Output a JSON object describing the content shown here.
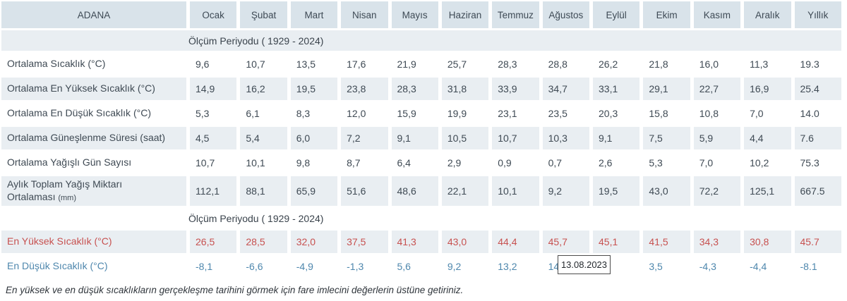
{
  "colors": {
    "header_bg": "#d9e3ea",
    "stripe_bg": "#e9eef2",
    "text": "#3f4a54",
    "max_color": "#c75150",
    "min_color": "#4e87ad"
  },
  "table": {
    "station": "ADANA",
    "months": [
      "Ocak",
      "Şubat",
      "Mart",
      "Nisan",
      "Mayıs",
      "Haziran",
      "Temmuz",
      "Ağustos",
      "Eylül",
      "Ekim",
      "Kasım",
      "Aralık",
      "Yıllık"
    ],
    "sections": [
      "Ölçüm Periyodu ( 1929 - 2024)",
      "Ölçüm Periyodu ( 1929 - 2024)"
    ],
    "rows": [
      {
        "label": "Ortalama Sıcaklık (°C)",
        "values": [
          "9,6",
          "10,7",
          "13,5",
          "17,6",
          "21,9",
          "25,7",
          "28,3",
          "28,8",
          "26,2",
          "21,8",
          "16,0",
          "11,3",
          "19.3"
        ]
      },
      {
        "label": "Ortalama En Yüksek Sıcaklık (°C)",
        "values": [
          "14,9",
          "16,2",
          "19,5",
          "23,8",
          "28,3",
          "31,8",
          "33,9",
          "34,7",
          "33,1",
          "29,1",
          "22,7",
          "16,9",
          "25.4"
        ]
      },
      {
        "label": "Ortalama En Düşük Sıcaklık (°C)",
        "values": [
          "5,3",
          "6,1",
          "8,3",
          "12,0",
          "15,9",
          "19,9",
          "23,1",
          "23,5",
          "20,3",
          "15,8",
          "10,8",
          "7,0",
          "14.0"
        ]
      },
      {
        "label": "Ortalama Güneşlenme Süresi (saat)",
        "values": [
          "4,5",
          "5,4",
          "6,0",
          "7,2",
          "9,1",
          "10,5",
          "10,7",
          "10,3",
          "9,1",
          "7,5",
          "5,9",
          "4,4",
          "7.6"
        ]
      },
      {
        "label": "Ortalama Yağışlı Gün Sayısı",
        "values": [
          "10,7",
          "10,1",
          "9,8",
          "8,7",
          "6,4",
          "2,9",
          "0,9",
          "0,7",
          "2,6",
          "5,3",
          "7,0",
          "10,2",
          "75.3"
        ]
      },
      {
        "label": "Aylık Toplam Yağış Miktarı",
        "label2": "Ortalaması",
        "unit": "(mm)",
        "values": [
          "112,1",
          "88,1",
          "65,9",
          "51,6",
          "48,6",
          "22,1",
          "10,1",
          "9,2",
          "19,5",
          "43,0",
          "72,2",
          "125,1",
          "667.5"
        ]
      }
    ],
    "extremes": [
      {
        "label": "En Yüksek Sıcaklık (°C)",
        "type": "max",
        "values": [
          "26,5",
          "28,5",
          "32,0",
          "37,5",
          "41,3",
          "43,0",
          "44,4",
          "45,7",
          "45,1",
          "41,5",
          "34,3",
          "30,8",
          "45.7"
        ]
      },
      {
        "label": "En Düşük Sıcaklık (°C)",
        "type": "min",
        "values": [
          "-8,1",
          "-6,6",
          "-4,9",
          "-1,3",
          "5,6",
          "9,2",
          "13,2",
          "14",
          "",
          "3,5",
          "-4,3",
          "-4,4",
          "-8.1"
        ]
      }
    ]
  },
  "tooltip": {
    "text": "13.08.2023"
  },
  "footer": {
    "note": "En yüksek ve en düşük sıcaklıkların gerçekleşme tarihini görmek için fare imlecini değerlerin üstüne getiriniz."
  }
}
